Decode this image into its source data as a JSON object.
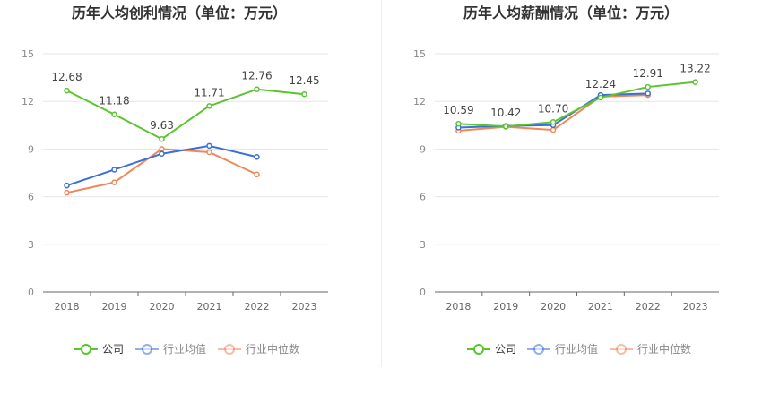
{
  "chart_data": [
    {
      "type": "line",
      "title": "历年人均创利情况（单位：万元）",
      "categories": [
        "2018",
        "2019",
        "2020",
        "2021",
        "2022",
        "2023"
      ],
      "ylim": [
        0,
        15
      ],
      "yticks": [
        0,
        3,
        6,
        9,
        12,
        15
      ],
      "grid": true,
      "legend_position": "bottom",
      "series": [
        {
          "name": "公司",
          "color": "#5bc42f",
          "values": [
            12.68,
            11.18,
            9.63,
            11.71,
            12.76,
            12.45
          ],
          "labels": [
            "12.68",
            "11.18",
            "9.63",
            "11.71",
            "12.76",
            "12.45"
          ]
        },
        {
          "name": "行业均值",
          "color": "#3a6fd8",
          "values": [
            6.7,
            7.7,
            8.7,
            9.2,
            8.5,
            null
          ]
        },
        {
          "name": "行业中位数",
          "color": "#f0875a",
          "values": [
            6.25,
            6.9,
            9.0,
            8.8,
            7.4,
            null
          ]
        }
      ]
    },
    {
      "type": "line",
      "title": "历年人均薪酬情况（单位：万元）",
      "categories": [
        "2018",
        "2019",
        "2020",
        "2021",
        "2022",
        "2023"
      ],
      "ylim": [
        0,
        15
      ],
      "yticks": [
        0,
        3,
        6,
        9,
        12,
        15
      ],
      "grid": true,
      "legend_position": "bottom",
      "series": [
        {
          "name": "公司",
          "color": "#5bc42f",
          "values": [
            10.59,
            10.42,
            10.7,
            12.24,
            12.91,
            13.22
          ],
          "labels": [
            "10.59",
            "10.42",
            "10.70",
            "12.24",
            "12.91",
            "13.22"
          ]
        },
        {
          "name": "行业均值",
          "color": "#3a6fd8",
          "values": [
            10.35,
            10.45,
            10.5,
            12.4,
            12.5,
            null
          ]
        },
        {
          "name": "行业中位数",
          "color": "#f0875a",
          "values": [
            10.15,
            10.4,
            10.2,
            12.3,
            12.4,
            null
          ]
        }
      ]
    }
  ]
}
